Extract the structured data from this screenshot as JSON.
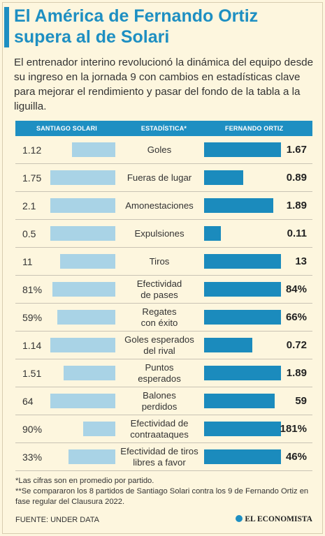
{
  "title": "El América de Fernando Ortiz supera al de Solari",
  "subtitle": "El entrenador interino revolucionó la dinámica del equipo desde su ingreso en la jornada 9 con cambios en estadísticas clave para mejorar el rendimiento y pasar del fondo de la tabla a la liguilla.",
  "header": {
    "left": "SANTIAGO SOLARI",
    "middle": "ESTADÍSTICA*",
    "right": "FERNANDO ORTIZ"
  },
  "colors": {
    "brand_blue": "#1e8fc2",
    "solari_bar": "#a9d3e6",
    "ortiz_bar": "#1b8bbd",
    "background": "#fdf6de"
  },
  "chart_data": {
    "type": "bar",
    "title": "El América de Fernando Ortiz supera al de Solari",
    "categories": [
      "Goles",
      "Fueras de lugar",
      "Amonestaciones",
      "Expulsiones",
      "Tiros",
      "Efectividad\nde pases",
      "Regates\ncon éxito",
      "Goles esperados\ndel rival",
      "Puntos\nesperados",
      "Balones\nperdidos",
      "Efectividad de\ncontraataques",
      "Efectividad de tiros\nlibres a favor"
    ],
    "series": [
      {
        "name": "SANTIAGO SOLARI",
        "labels": [
          "1.12",
          "1.75",
          "2.1",
          "0.5",
          "11",
          "81%",
          "59%",
          "1.14",
          "1.51",
          "64",
          "90%",
          "33%"
        ],
        "values": [
          1.12,
          1.75,
          2.1,
          0.5,
          11,
          81,
          59,
          1.14,
          1.51,
          64,
          90,
          33
        ]
      },
      {
        "name": "FERNANDO ORTIZ",
        "labels": [
          "1.67",
          "0.89",
          "1.89",
          "0.11",
          "13",
          "84%",
          "66%",
          "0.72",
          "1.89",
          "59",
          "181%",
          "46%"
        ],
        "values": [
          1.67,
          0.89,
          1.89,
          0.11,
          13,
          84,
          66,
          0.72,
          1.89,
          59,
          181,
          46
        ]
      }
    ]
  },
  "notes": [
    "*Las cifras son en promedio por partido.",
    "**Se compararon los 8 partidos de Santiago Solari contra los 9 de Fernando Ortiz en fase regular del Clausura 2022."
  ],
  "source": "FUENTE: UNDER DATA",
  "brand": "EL ECONOMISTA"
}
